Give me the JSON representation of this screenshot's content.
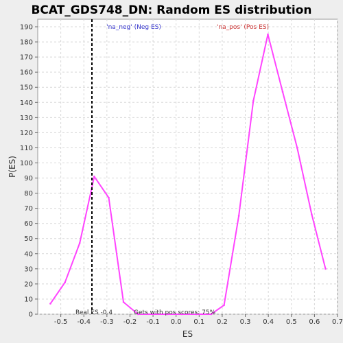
{
  "chart_data": {
    "type": "line",
    "title": "BCAT_GDS748_DN: Random ES distribution",
    "xlabel": "ES",
    "ylabel": "P(ES)",
    "xlim": [
      -0.6,
      0.7
    ],
    "ylim": [
      0,
      195
    ],
    "xticks": [
      "-0.5",
      "-0.4",
      "-0.3",
      "-0.2",
      "-0.1",
      "0.0",
      "0.1",
      "0.2",
      "0.3",
      "0.4",
      "0.5",
      "0.6",
      "0.7"
    ],
    "yticks": [
      "0",
      "10",
      "20",
      "30",
      "40",
      "50",
      "60",
      "70",
      "80",
      "90",
      "100",
      "110",
      "120",
      "130",
      "140",
      "150",
      "160",
      "170",
      "180",
      "190"
    ],
    "grid": true,
    "line_color": "#ff44ff",
    "series": [
      {
        "x": [
          -0.545,
          -0.482,
          -0.418,
          -0.355,
          -0.292,
          -0.228,
          -0.165,
          -0.102,
          -0.038,
          0.025,
          0.088,
          0.152,
          0.208,
          0.272,
          0.335,
          0.398,
          0.462,
          0.525,
          0.588,
          0.648
        ],
        "y": [
          7,
          21,
          47,
          91,
          77,
          8,
          0,
          0,
          0,
          0,
          0,
          0,
          6,
          65,
          141,
          185,
          147,
          110,
          66,
          30
        ]
      }
    ],
    "real_es": -0.365,
    "annotations": {
      "real_es_label": "Real ES -0.4",
      "pos_scores_label": "Gets with pos scores: 75%",
      "neg_label": "'na_neg' (Neg ES)",
      "pos_label": "'na_pos' (Pos ES)"
    },
    "colors": {
      "neg": "#3333cc",
      "pos": "#cc3333",
      "grid": "#d8d8d8",
      "real_es_line": "#000000"
    }
  }
}
